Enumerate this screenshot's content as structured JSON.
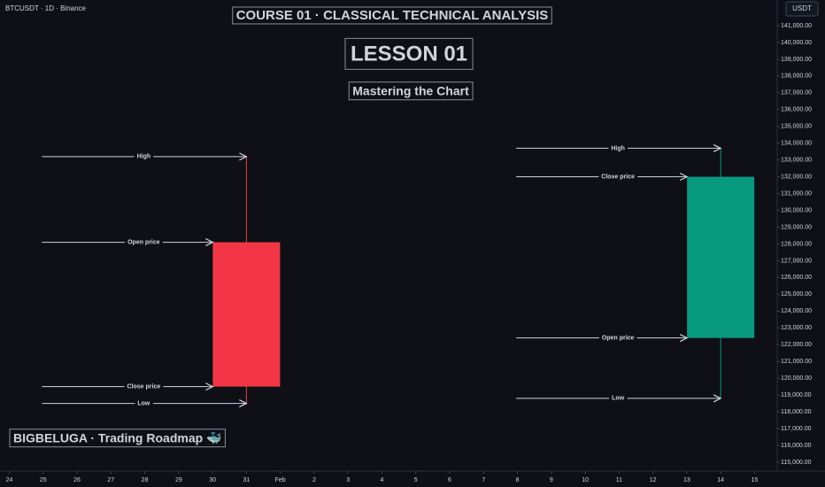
{
  "chart_data": {
    "type": "candlestick",
    "header": "BTCUSDT · 1D · Binance",
    "currency": "USDT",
    "title": "COURSE 01 · CLASSICAL TECHNICAL ANALYSIS",
    "lesson": "LESSON 01",
    "subtitle": "Mastering the Chart",
    "footer": "BIGBELUGA · Trading Roadmap 🐳",
    "categories": [
      "24",
      "25",
      "26",
      "27",
      "28",
      "29",
      "30",
      "31",
      "Feb",
      "2",
      "3",
      "4",
      "5",
      "6",
      "7",
      "8",
      "9",
      "10",
      "11",
      "12",
      "13",
      "14",
      "15"
    ],
    "open": [
      null,
      null,
      null,
      null,
      null,
      null,
      null,
      128100,
      null,
      null,
      null,
      null,
      null,
      null,
      null,
      null,
      null,
      null,
      null,
      null,
      null,
      122400,
      null
    ],
    "high": [
      null,
      null,
      null,
      null,
      null,
      null,
      null,
      133200,
      null,
      null,
      null,
      null,
      null,
      null,
      null,
      null,
      null,
      null,
      null,
      null,
      null,
      133700,
      null
    ],
    "low": [
      null,
      null,
      null,
      null,
      null,
      null,
      null,
      118500,
      null,
      null,
      null,
      null,
      null,
      null,
      null,
      null,
      null,
      null,
      null,
      null,
      null,
      118800,
      null
    ],
    "close": [
      null,
      null,
      null,
      null,
      null,
      null,
      null,
      119500,
      null,
      null,
      null,
      null,
      null,
      null,
      null,
      null,
      null,
      null,
      null,
      null,
      null,
      132000,
      null
    ],
    "annotation_labels": [
      "High",
      "Open price",
      "Close price",
      "Low"
    ],
    "up_color": "#089981",
    "down_color": "#f23645",
    "ylim": [
      114470,
      142530
    ],
    "yticks": [
      {
        "value": 115000,
        "label": "115,000.00"
      },
      {
        "value": 116000,
        "label": "116,000.00"
      },
      {
        "value": 117000,
        "label": "117,000.00"
      },
      {
        "value": 118000,
        "label": "118,000.00"
      },
      {
        "value": 119000,
        "label": "119,000.00"
      },
      {
        "value": 120000,
        "label": "120,000.00"
      },
      {
        "value": 121000,
        "label": "121,000.00"
      },
      {
        "value": 122000,
        "label": "122,000.00"
      },
      {
        "value": 123000,
        "label": "123,000.00"
      },
      {
        "value": 124000,
        "label": "124,000.00"
      },
      {
        "value": 125000,
        "label": "125,000.00"
      },
      {
        "value": 126000,
        "label": "126,000.00"
      },
      {
        "value": 127000,
        "label": "127,000.00"
      },
      {
        "value": 128000,
        "label": "128,000.00"
      },
      {
        "value": 129000,
        "label": "129,000.00"
      },
      {
        "value": 130000,
        "label": "130,000.00"
      },
      {
        "value": 131000,
        "label": "131,000.00"
      },
      {
        "value": 132000,
        "label": "132,000.00"
      },
      {
        "value": 133000,
        "label": "133,000.00"
      },
      {
        "value": 134000,
        "label": "134,000.00"
      },
      {
        "value": 135000,
        "label": "135,000.00"
      },
      {
        "value": 136000,
        "label": "136,000.00"
      },
      {
        "value": 137000,
        "label": "137,000.00"
      },
      {
        "value": 138000,
        "label": "138,000.00"
      },
      {
        "value": 139000,
        "label": "139,000.00"
      },
      {
        "value": 140000,
        "label": "140,000.00"
      },
      {
        "value": 141000,
        "label": "141,000.00"
      }
    ]
  }
}
